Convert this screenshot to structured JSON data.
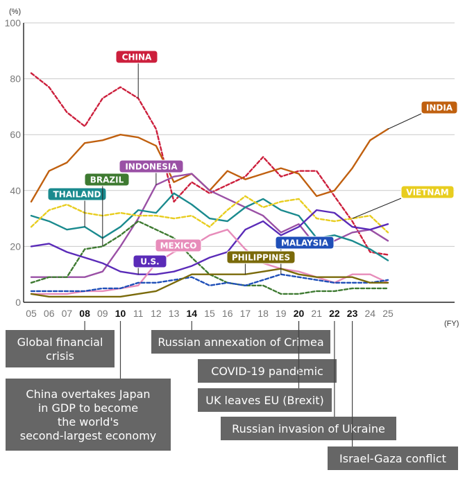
{
  "chart_data": {
    "type": "line",
    "y_unit": "(%)",
    "x_unit": "(FY)",
    "ylim": [
      0,
      100
    ],
    "y_ticks": [
      0,
      20,
      40,
      60,
      80,
      100
    ],
    "x_ticks": [
      "05",
      "06",
      "07",
      "08",
      "09",
      "10",
      "11",
      "12",
      "13",
      "14",
      "15",
      "16",
      "17",
      "18",
      "19",
      "20",
      "21",
      "22",
      "23",
      "24",
      "25"
    ],
    "bold_ticks": [
      "08",
      "10",
      "14",
      "20",
      "22",
      "23"
    ],
    "grid": "horizontal",
    "series": [
      {
        "name": "CHINA",
        "color": "#cc1f3c",
        "dashed": true,
        "values": [
          82,
          77,
          68,
          63,
          73,
          77,
          73,
          62,
          36,
          43,
          39,
          42,
          45,
          52,
          45,
          47,
          47,
          38,
          29,
          18,
          17
        ]
      },
      {
        "name": "INDIA",
        "color": "#c0600f",
        "dashed": false,
        "values": [
          36,
          47,
          50,
          57,
          58,
          60,
          59,
          56,
          43,
          46,
          40,
          47,
          44,
          46,
          48,
          46,
          38,
          40,
          48,
          58,
          62
        ]
      },
      {
        "name": "INDONESIA",
        "color": "#9a50a5",
        "dashed": false,
        "values": [
          9,
          9,
          9,
          9,
          11,
          20,
          30,
          42,
          45,
          46,
          40,
          37,
          34,
          31,
          25,
          28,
          20,
          22,
          25,
          26,
          22
        ]
      },
      {
        "name": "THAILAND",
        "color": "#1a8a8e",
        "dashed": false,
        "values": [
          31,
          29,
          26,
          27,
          23,
          27,
          33,
          32,
          39,
          35,
          30,
          29,
          34,
          37,
          33,
          31,
          23,
          24,
          22,
          19,
          15
        ]
      },
      {
        "name": "VIETNAM",
        "color": "#e8cd1f",
        "dashed": true,
        "values": [
          27,
          33,
          35,
          32,
          31,
          32,
          31,
          31,
          30,
          31,
          27,
          33,
          38,
          34,
          36,
          37,
          30,
          29,
          30,
          31,
          25
        ]
      },
      {
        "name": "BRAZIL",
        "color": "#3e7a31",
        "dashed": true,
        "values": [
          7,
          9,
          9,
          19,
          20,
          24,
          29,
          26,
          23,
          16,
          10,
          7,
          6,
          6,
          3,
          3,
          4,
          4,
          5,
          5,
          5
        ]
      },
      {
        "name": "U.S.",
        "color": "#5a2bb8",
        "dashed": false,
        "values": [
          20,
          21,
          18,
          16,
          14,
          11,
          10,
          10,
          11,
          13,
          16,
          18,
          26,
          29,
          24,
          27,
          33,
          32,
          27,
          26,
          28
        ]
      },
      {
        "name": "MEXICO",
        "color": "#e78cba",
        "dashed": false,
        "values": [
          3,
          3,
          3,
          4,
          4,
          5,
          6,
          14,
          18,
          20,
          24,
          26,
          19,
          14,
          12,
          11,
          9,
          7,
          10,
          10,
          7
        ]
      },
      {
        "name": "MALAYSIA",
        "color": "#1f4fb8",
        "dashed": true,
        "values": [
          4,
          4,
          4,
          4,
          5,
          5,
          7,
          7,
          8,
          9,
          6,
          7,
          6,
          8,
          10,
          9,
          8,
          7,
          7,
          7,
          8
        ]
      },
      {
        "name": "PHILIPPINES",
        "color": "#7a6a0a",
        "dashed": false,
        "values": [
          3,
          2,
          2,
          2,
          2,
          2,
          3,
          4,
          7,
          10,
          10,
          10,
          10,
          11,
          12,
          10,
          9,
          9,
          9,
          7,
          7
        ]
      }
    ]
  },
  "labels": [
    {
      "series": "CHINA",
      "text": "CHINA"
    },
    {
      "series": "INDIA",
      "text": "INDIA"
    },
    {
      "series": "INDONESIA",
      "text": "INDONESIA"
    },
    {
      "series": "THAILAND",
      "text": "THAILAND"
    },
    {
      "series": "VIETNAM",
      "text": "VIETNAM"
    },
    {
      "series": "BRAZIL",
      "text": "BRAZIL"
    },
    {
      "series": "U.S.",
      "text": "U.S."
    },
    {
      "series": "MEXICO",
      "text": "MEXICO"
    },
    {
      "series": "MALAYSIA",
      "text": "MALAYSIA"
    },
    {
      "series": "PHILIPPINES",
      "text": "PHILIPPINES"
    }
  ],
  "events": [
    {
      "year": "08",
      "lines": [
        "Global financial",
        "crisis"
      ]
    },
    {
      "year": "10",
      "lines": [
        "China overtakes Japan",
        "in GDP to become",
        "the world's",
        "second-largest economy"
      ]
    },
    {
      "year": "14",
      "lines": [
        "Russian annexation of Crimea"
      ]
    },
    {
      "year": "20",
      "lines": [
        "COVID-19 pandemic"
      ]
    },
    {
      "year": "20",
      "lines": [
        "UK leaves EU (Brexit)"
      ]
    },
    {
      "year": "22",
      "lines": [
        "Russian invasion of Ukraine"
      ]
    },
    {
      "year": "23",
      "lines": [
        "Israel-Gaza conflict"
      ]
    }
  ]
}
